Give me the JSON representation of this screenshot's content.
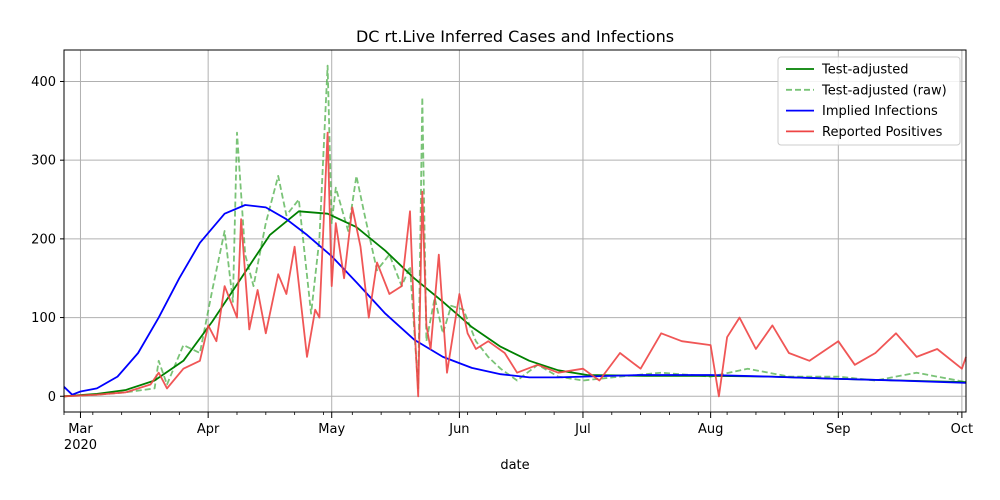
{
  "chart_data": {
    "type": "line",
    "title": "DC rt.Live Inferred Cases and Infections",
    "xlabel": "date",
    "ylabel": "",
    "x_range": [
      "2020-02-26",
      "2020-10-02"
    ],
    "ylim": [
      -20,
      440
    ],
    "grid": true,
    "legend_position": "top-right",
    "x_ticks": [
      {
        "date": "2020-03-01",
        "label": "Mar",
        "sublabel": "2020"
      },
      {
        "date": "2020-04-01",
        "label": "Apr",
        "sublabel": ""
      },
      {
        "date": "2020-05-01",
        "label": "May",
        "sublabel": ""
      },
      {
        "date": "2020-06-01",
        "label": "Jun",
        "sublabel": ""
      },
      {
        "date": "2020-07-01",
        "label": "Jul",
        "sublabel": ""
      },
      {
        "date": "2020-08-01",
        "label": "Aug",
        "sublabel": ""
      },
      {
        "date": "2020-09-01",
        "label": "Sep",
        "sublabel": ""
      },
      {
        "date": "2020-10-01",
        "label": "Oct",
        "sublabel": ""
      }
    ],
    "y_ticks": [
      0,
      100,
      200,
      300,
      400
    ],
    "series": [
      {
        "name": "Test-adjusted",
        "color": "#008000",
        "style": "solid",
        "x": [
          "2020-02-26",
          "2020-03-05",
          "2020-03-12",
          "2020-03-19",
          "2020-03-26",
          "2020-04-02",
          "2020-04-09",
          "2020-04-16",
          "2020-04-23",
          "2020-04-30",
          "2020-05-07",
          "2020-05-14",
          "2020-05-21",
          "2020-05-28",
          "2020-06-04",
          "2020-06-11",
          "2020-06-18",
          "2020-06-25",
          "2020-07-02",
          "2020-07-16",
          "2020-08-01",
          "2020-08-16",
          "2020-09-01",
          "2020-09-16",
          "2020-10-02"
        ],
        "y": [
          0,
          3,
          8,
          20,
          45,
          95,
          150,
          205,
          235,
          232,
          215,
          185,
          150,
          120,
          88,
          63,
          45,
          33,
          27,
          26,
          26,
          25,
          22,
          20,
          18
        ]
      },
      {
        "name": "Test-adjusted (raw)",
        "color": "#4daf4a",
        "style": "dashed",
        "x": [
          "2020-02-26",
          "2020-03-05",
          "2020-03-12",
          "2020-03-19",
          "2020-03-20",
          "2020-03-22",
          "2020-03-26",
          "2020-03-30",
          "2020-04-02",
          "2020-04-05",
          "2020-04-07",
          "2020-04-08",
          "2020-04-10",
          "2020-04-12",
          "2020-04-15",
          "2020-04-18",
          "2020-04-20",
          "2020-04-23",
          "2020-04-26",
          "2020-04-28",
          "2020-04-30",
          "2020-05-01",
          "2020-05-02",
          "2020-05-05",
          "2020-05-07",
          "2020-05-09",
          "2020-05-12",
          "2020-05-15",
          "2020-05-18",
          "2020-05-20",
          "2020-05-22",
          "2020-05-23",
          "2020-05-24",
          "2020-05-26",
          "2020-05-28",
          "2020-05-30",
          "2020-06-02",
          "2020-06-05",
          "2020-06-08",
          "2020-06-11",
          "2020-06-15",
          "2020-06-20",
          "2020-06-25",
          "2020-07-01",
          "2020-07-10",
          "2020-07-20",
          "2020-08-01",
          "2020-08-10",
          "2020-08-20",
          "2020-09-01",
          "2020-09-10",
          "2020-09-20",
          "2020-10-02"
        ],
        "y": [
          0,
          2,
          5,
          10,
          45,
          15,
          65,
          55,
          135,
          210,
          120,
          335,
          180,
          140,
          220,
          280,
          230,
          250,
          105,
          200,
          420,
          220,
          265,
          210,
          280,
          230,
          160,
          180,
          140,
          165,
          10,
          380,
          70,
          125,
          80,
          115,
          110,
          70,
          50,
          35,
          20,
          40,
          25,
          20,
          25,
          30,
          25,
          35,
          25,
          25,
          20,
          30,
          18
        ]
      },
      {
        "name": "Implied Infections",
        "color": "#0000ff",
        "style": "solid",
        "x": [
          "2020-02-26",
          "2020-02-28",
          "2020-03-01",
          "2020-03-05",
          "2020-03-10",
          "2020-03-15",
          "2020-03-20",
          "2020-03-25",
          "2020-03-30",
          "2020-04-05",
          "2020-04-10",
          "2020-04-15",
          "2020-04-20",
          "2020-04-25",
          "2020-05-01",
          "2020-05-07",
          "2020-05-14",
          "2020-05-21",
          "2020-05-28",
          "2020-06-04",
          "2020-06-11",
          "2020-06-18",
          "2020-06-25",
          "2020-07-01",
          "2020-07-15",
          "2020-08-01",
          "2020-08-15",
          "2020-09-01",
          "2020-09-15",
          "2020-10-02"
        ],
        "y": [
          12,
          2,
          6,
          10,
          25,
          55,
          100,
          150,
          195,
          232,
          243,
          240,
          225,
          205,
          178,
          145,
          105,
          72,
          50,
          36,
          28,
          24,
          24,
          25,
          27,
          27,
          25,
          22,
          20,
          17
        ]
      },
      {
        "name": "Reported Positives",
        "color": "#ee4444",
        "style": "solid",
        "x": [
          "2020-02-26",
          "2020-03-05",
          "2020-03-12",
          "2020-03-18",
          "2020-03-20",
          "2020-03-22",
          "2020-03-26",
          "2020-03-30",
          "2020-04-01",
          "2020-04-03",
          "2020-04-05",
          "2020-04-08",
          "2020-04-09",
          "2020-04-11",
          "2020-04-13",
          "2020-04-15",
          "2020-04-18",
          "2020-04-20",
          "2020-04-22",
          "2020-04-25",
          "2020-04-27",
          "2020-04-28",
          "2020-04-30",
          "2020-05-01",
          "2020-05-02",
          "2020-05-04",
          "2020-05-06",
          "2020-05-08",
          "2020-05-10",
          "2020-05-12",
          "2020-05-15",
          "2020-05-18",
          "2020-05-20",
          "2020-05-21",
          "2020-05-22",
          "2020-05-23",
          "2020-05-24",
          "2020-05-25",
          "2020-05-27",
          "2020-05-29",
          "2020-06-01",
          "2020-06-03",
          "2020-06-05",
          "2020-06-08",
          "2020-06-12",
          "2020-06-15",
          "2020-06-20",
          "2020-06-25",
          "2020-07-01",
          "2020-07-05",
          "2020-07-10",
          "2020-07-15",
          "2020-07-20",
          "2020-07-25",
          "2020-08-01",
          "2020-08-03",
          "2020-08-05",
          "2020-08-08",
          "2020-08-12",
          "2020-08-16",
          "2020-08-20",
          "2020-08-25",
          "2020-09-01",
          "2020-09-05",
          "2020-09-10",
          "2020-09-15",
          "2020-09-20",
          "2020-09-25",
          "2020-10-01",
          "2020-10-02"
        ],
        "y": [
          0,
          2,
          5,
          15,
          30,
          10,
          35,
          45,
          90,
          70,
          140,
          100,
          225,
          85,
          135,
          80,
          155,
          130,
          190,
          50,
          110,
          100,
          335,
          140,
          220,
          150,
          240,
          190,
          100,
          170,
          130,
          140,
          235,
          100,
          0,
          260,
          90,
          60,
          180,
          30,
          130,
          80,
          60,
          70,
          55,
          30,
          40,
          30,
          35,
          20,
          55,
          35,
          80,
          70,
          65,
          0,
          75,
          100,
          60,
          90,
          55,
          45,
          70,
          40,
          55,
          80,
          50,
          60,
          35,
          50
        ]
      }
    ]
  }
}
